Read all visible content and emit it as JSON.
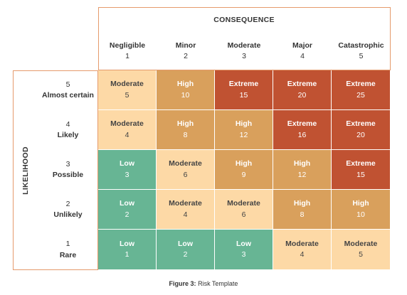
{
  "consequence_title": "CONSEQUENCE",
  "likelihood_title": "LIKELIHOOD",
  "columns": [
    {
      "label": "Negligible",
      "num": "1"
    },
    {
      "label": "Minor",
      "num": "2"
    },
    {
      "label": "Moderate",
      "num": "3"
    },
    {
      "label": "Major",
      "num": "4"
    },
    {
      "label": "Catastrophic",
      "num": "5"
    }
  ],
  "rows": [
    {
      "num": "5",
      "label": "Almost certain"
    },
    {
      "num": "4",
      "label": "Likely"
    },
    {
      "num": "3",
      "label": "Possible"
    },
    {
      "num": "2",
      "label": "Unlikely"
    },
    {
      "num": "1",
      "label": "Rare"
    }
  ],
  "levels": {
    "Low": {
      "bg": "#67b594",
      "fg": "#ffffff"
    },
    "Moderate": {
      "bg": "#fdd9a6",
      "fg": "#444444"
    },
    "High": {
      "bg": "#d9a05c",
      "fg": "#ffffff"
    },
    "Extreme": {
      "bg": "#c05232",
      "fg": "#ffffff"
    }
  },
  "cells": [
    [
      {
        "level": "Moderate",
        "score": "5"
      },
      {
        "level": "High",
        "score": "10"
      },
      {
        "level": "Extreme",
        "score": "15"
      },
      {
        "level": "Extreme",
        "score": "20"
      },
      {
        "level": "Extreme",
        "score": "25"
      }
    ],
    [
      {
        "level": "Moderate",
        "score": "4"
      },
      {
        "level": "High",
        "score": "8"
      },
      {
        "level": "High",
        "score": "12"
      },
      {
        "level": "Extreme",
        "score": "16"
      },
      {
        "level": "Extreme",
        "score": "20"
      }
    ],
    [
      {
        "level": "Low",
        "score": "3"
      },
      {
        "level": "Moderate",
        "score": "6"
      },
      {
        "level": "High",
        "score": "9"
      },
      {
        "level": "High",
        "score": "12"
      },
      {
        "level": "Extreme",
        "score": "15"
      }
    ],
    [
      {
        "level": "Low",
        "score": "2"
      },
      {
        "level": "Moderate",
        "score": "4"
      },
      {
        "level": "Moderate",
        "score": "6"
      },
      {
        "level": "High",
        "score": "8"
      },
      {
        "level": "High",
        "score": "10"
      }
    ],
    [
      {
        "level": "Low",
        "score": "1"
      },
      {
        "level": "Low",
        "score": "2"
      },
      {
        "level": "Low",
        "score": "3"
      },
      {
        "level": "Moderate",
        "score": "4"
      },
      {
        "level": "Moderate",
        "score": "5"
      }
    ]
  ],
  "caption": {
    "prefix": "Figure 3:",
    "text": "Risk Template"
  }
}
